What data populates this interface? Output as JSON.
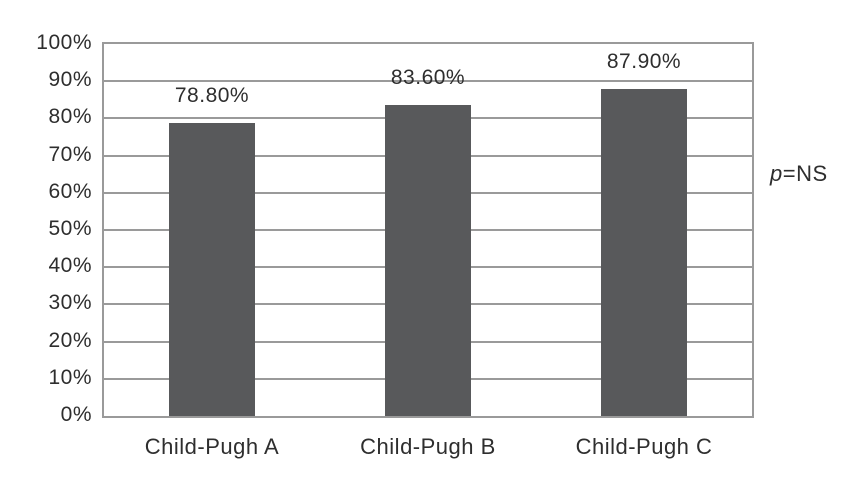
{
  "chart_data": {
    "type": "bar",
    "title": "",
    "xlabel": "",
    "ylabel": "",
    "categories": [
      "Child-Pugh A",
      "Child-Pugh B",
      "Child-Pugh C"
    ],
    "values": [
      78.8,
      83.6,
      87.9
    ],
    "value_labels": [
      "78.80%",
      "83.60%",
      "87.90%"
    ],
    "ylim": [
      0,
      100
    ],
    "ytick_step": 10,
    "ytick_labels": [
      "0%",
      "10%",
      "20%",
      "30%",
      "40%",
      "50%",
      "60%",
      "70%",
      "80%",
      "90%",
      "100%"
    ],
    "grid": true,
    "legend": "none",
    "annotation": {
      "italic": "p",
      "text": "=NS"
    },
    "colors": {
      "bar": "#58595b",
      "grid": "#9a9a9a",
      "border": "#9a9a9a",
      "text": "#2e2e2e",
      "background": "#ffffff"
    }
  }
}
